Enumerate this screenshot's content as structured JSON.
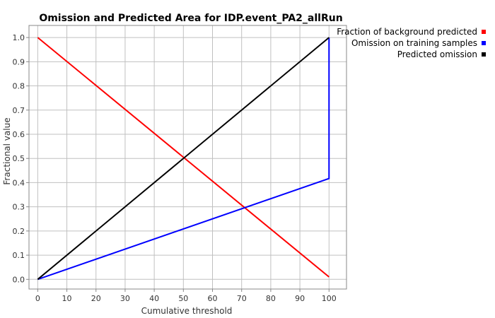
{
  "chart_data": {
    "type": "line",
    "title": "Omission and Predicted Area for IDP.event_PA2_allRun",
    "xlabel": "Cumulative threshold",
    "ylabel": "Fractional value",
    "xlim": [
      -3,
      106
    ],
    "ylim": [
      -0.04,
      1.05
    ],
    "xticks": [
      0,
      10,
      20,
      30,
      40,
      50,
      60,
      70,
      80,
      90,
      100
    ],
    "yticks": [
      0.0,
      0.1,
      0.2,
      0.3,
      0.4,
      0.5,
      0.6,
      0.7,
      0.8,
      0.9,
      1.0
    ],
    "grid": true,
    "legend_position": "top-right, outside plot",
    "series": [
      {
        "name": "Fraction of background predicted",
        "color": "#ff0000",
        "points": [
          [
            0,
            1.0
          ],
          [
            100,
            0.01
          ]
        ]
      },
      {
        "name": "Omission on training samples",
        "color": "#0000ff",
        "points": [
          [
            0,
            0.0
          ],
          [
            100,
            0.417
          ],
          [
            100,
            1.0
          ]
        ]
      },
      {
        "name": "Predicted omission",
        "color": "#000000",
        "points": [
          [
            0,
            0.0
          ],
          [
            100,
            1.0
          ]
        ]
      }
    ]
  }
}
